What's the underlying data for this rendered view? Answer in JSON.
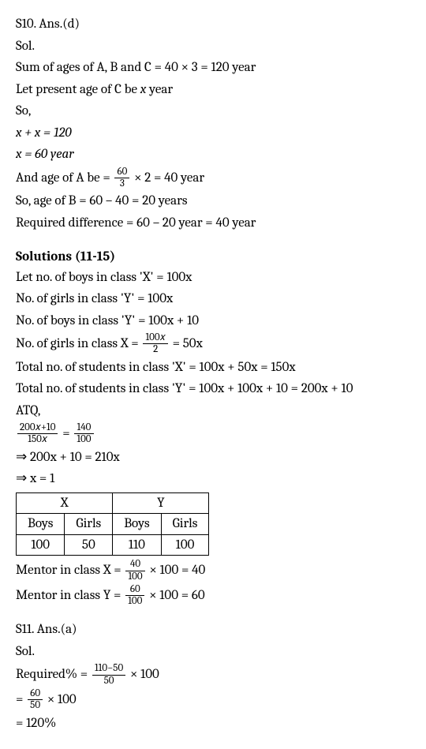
{
  "s10": {
    "title": "S10. Ans.(d)",
    "sol_label": "Sol.",
    "line1a": "Sum of ages of A, B and C = 40 × 3 = 120 year",
    "line2a": "Let present age of C be ",
    "line2b": "x",
    "line2c": " year",
    "line3": "So,",
    "line4": "x + x = 120",
    "line5": "x = 60 year",
    "line6a": "And age of A be = ",
    "frac1_num": "60",
    "frac1_den": "3",
    "line6c": " × 2 = 40 year",
    "line7": "So, age of B = 60 – 40 = 20 years",
    "line8": "Required difference = 60 – 20 year = 40 year"
  },
  "sol1115": {
    "heading": "Solutions (11-15)",
    "l1": "Let no. of boys in class 'X' = 100x",
    "l2": "No. of girls in class 'Y' = 100x",
    "l3": "No. of boys in class 'Y' = 100x + 10",
    "l4a": "No. of girls in class X = ",
    "l4_num": "100𝑥",
    "l4_den": "2",
    "l4c": " = 50x",
    "l5": "Total no. of students in class 'X' = 100x + 50x = 150x",
    "l6": "Total no. of students in class 'Y' = 100x + 100x + 10 = 200x + 10",
    "atq": "ATQ,",
    "eq_l_num": "200𝑥+10",
    "eq_l_den": "150𝑥",
    "eq_eq": " = ",
    "eq_r_num": "140",
    "eq_r_den": "100",
    "imp1": "⇒ 200x + 10 = 210x",
    "imp2": "⇒ x = 1",
    "table": {
      "head": [
        "X",
        "Y"
      ],
      "sub": [
        "Boys",
        "Girls",
        "Boys",
        "Girls"
      ],
      "row": [
        "100",
        "50",
        "110",
        "100"
      ]
    },
    "mentor_x_a": "Mentor in class X = ",
    "mx_num": "40",
    "mx_den": "100",
    "mentor_x_c": " × 100 = 40",
    "mentor_y_a": "Mentor in class Y = ",
    "my_num": "60",
    "my_den": "100",
    "mentor_y_c": " × 100 = 60"
  },
  "s11": {
    "title": "S11. Ans.(a)",
    "sol_label": "Sol.",
    "req_a": "Required% = ",
    "req_num": "110−50",
    "req_den": "50",
    "req_c": " × 100",
    "step2_a": "= ",
    "step2_num": "60",
    "step2_den": "50",
    "step2_c": " × 100",
    "result": "= 120%"
  }
}
